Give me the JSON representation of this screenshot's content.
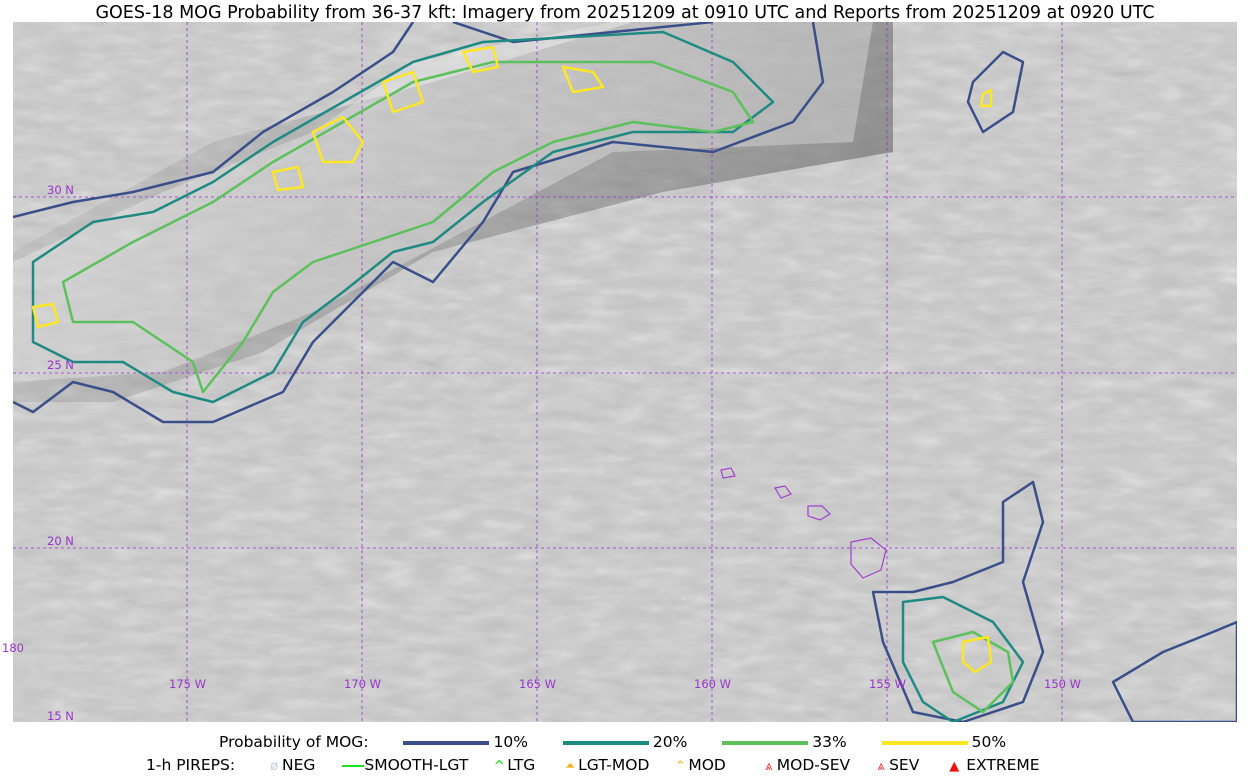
{
  "title": "GOES-18 MOG Probability from 36-37 kft: Imagery from 20251209 at 0910 UTC and Reports from 20251209 at 0920 UTC",
  "map": {
    "lat_labels": [
      "30 N",
      "25 N",
      "20 N",
      "15 N"
    ],
    "lon_labels": [
      "180",
      "175 W",
      "170 W",
      "165 W",
      "160 W",
      "155 W",
      "150 W"
    ],
    "gridline_color": "#9933cc"
  },
  "legend": {
    "probability_label": "Probability of MOG:",
    "probability_levels": [
      {
        "label": "10%",
        "color": "#3a4f8a"
      },
      {
        "label": "20%",
        "color": "#1f8a82"
      },
      {
        "label": "33%",
        "color": "#5cc15c"
      },
      {
        "label": "50%",
        "color": "#fde725"
      }
    ],
    "pireps_label": "1-h PIREPS:",
    "pireps": [
      {
        "label": "NEG",
        "icon": "neg-icon",
        "color": "#c8c8f0"
      },
      {
        "label": "SMOOTH-LGT",
        "icon": "line-icon",
        "color": "#22dd22"
      },
      {
        "label": "LTG",
        "icon": "caret-icon",
        "color": "#00dd00"
      },
      {
        "label": "LGT-MOD",
        "icon": "triangle-line-icon",
        "color": "#f5b020"
      },
      {
        "label": "MOD",
        "icon": "caret-line-icon",
        "color": "#f5b020"
      },
      {
        "label": "MOD-SEV",
        "icon": "double-caret-icon",
        "color": "#ee3030"
      },
      {
        "label": "SEV",
        "icon": "double-caret-icon",
        "color": "#ee3030"
      },
      {
        "label": "EXTREME",
        "icon": "filled-triangle-icon",
        "color": "#ee1010"
      }
    ]
  }
}
